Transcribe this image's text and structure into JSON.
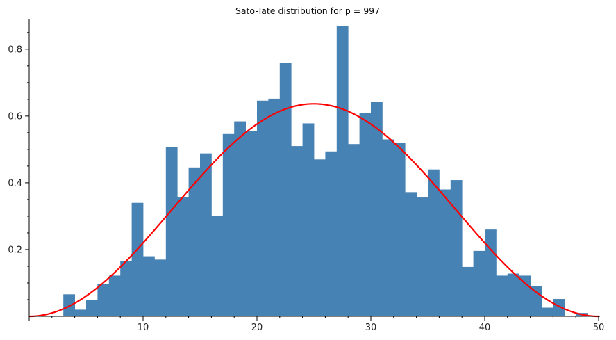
{
  "chart_data": {
    "type": "bar",
    "title": "Sato-Tate distribution for p = 997",
    "xlabel": "",
    "ylabel": "",
    "xlim": [
      0,
      50
    ],
    "ylim": [
      0,
      0.885
    ],
    "bin_width": 1,
    "grid": false,
    "x_ticks": [
      10,
      20,
      30,
      40,
      50
    ],
    "y_ticks": [
      0.2,
      0.4,
      0.6,
      0.8
    ],
    "x_tick_labels": [
      "10",
      "20",
      "30",
      "40",
      "50"
    ],
    "y_tick_labels": [
      "0.2",
      "0.4",
      "0.6",
      "0.8"
    ],
    "colors": {
      "bars": "#4682b4",
      "curve": "#ff0000",
      "axes": "#000000"
    },
    "histogram": {
      "name": "histogram",
      "bin_starts": [
        0,
        1,
        2,
        3,
        4,
        5,
        6,
        7,
        8,
        9,
        10,
        11,
        12,
        13,
        14,
        15,
        16,
        17,
        18,
        19,
        20,
        21,
        22,
        23,
        24,
        25,
        26,
        27,
        28,
        29,
        30,
        31,
        32,
        33,
        34,
        35,
        36,
        37,
        38,
        39,
        40,
        41,
        42,
        43,
        44,
        45,
        46,
        47,
        48,
        49
      ],
      "values": [
        0,
        0,
        0,
        0.066,
        0.02,
        0.048,
        0.096,
        0.122,
        0.166,
        0.34,
        0.18,
        0.17,
        0.506,
        0.356,
        0.446,
        0.488,
        0.302,
        0.546,
        0.584,
        0.556,
        0.646,
        0.652,
        0.76,
        0.51,
        0.578,
        0.47,
        0.494,
        0.87,
        0.516,
        0.61,
        0.642,
        0.53,
        0.52,
        0.372,
        0.356,
        0.44,
        0.38,
        0.408,
        0.148,
        0.196,
        0.26,
        0.122,
        0.128,
        0.122,
        0.09,
        0.026,
        0.052,
        0,
        0.01,
        0
      ]
    },
    "curve": {
      "name": "density",
      "peak_x": 25,
      "peak_y": 0.6366,
      "x_range": [
        0,
        50
      ]
    }
  }
}
